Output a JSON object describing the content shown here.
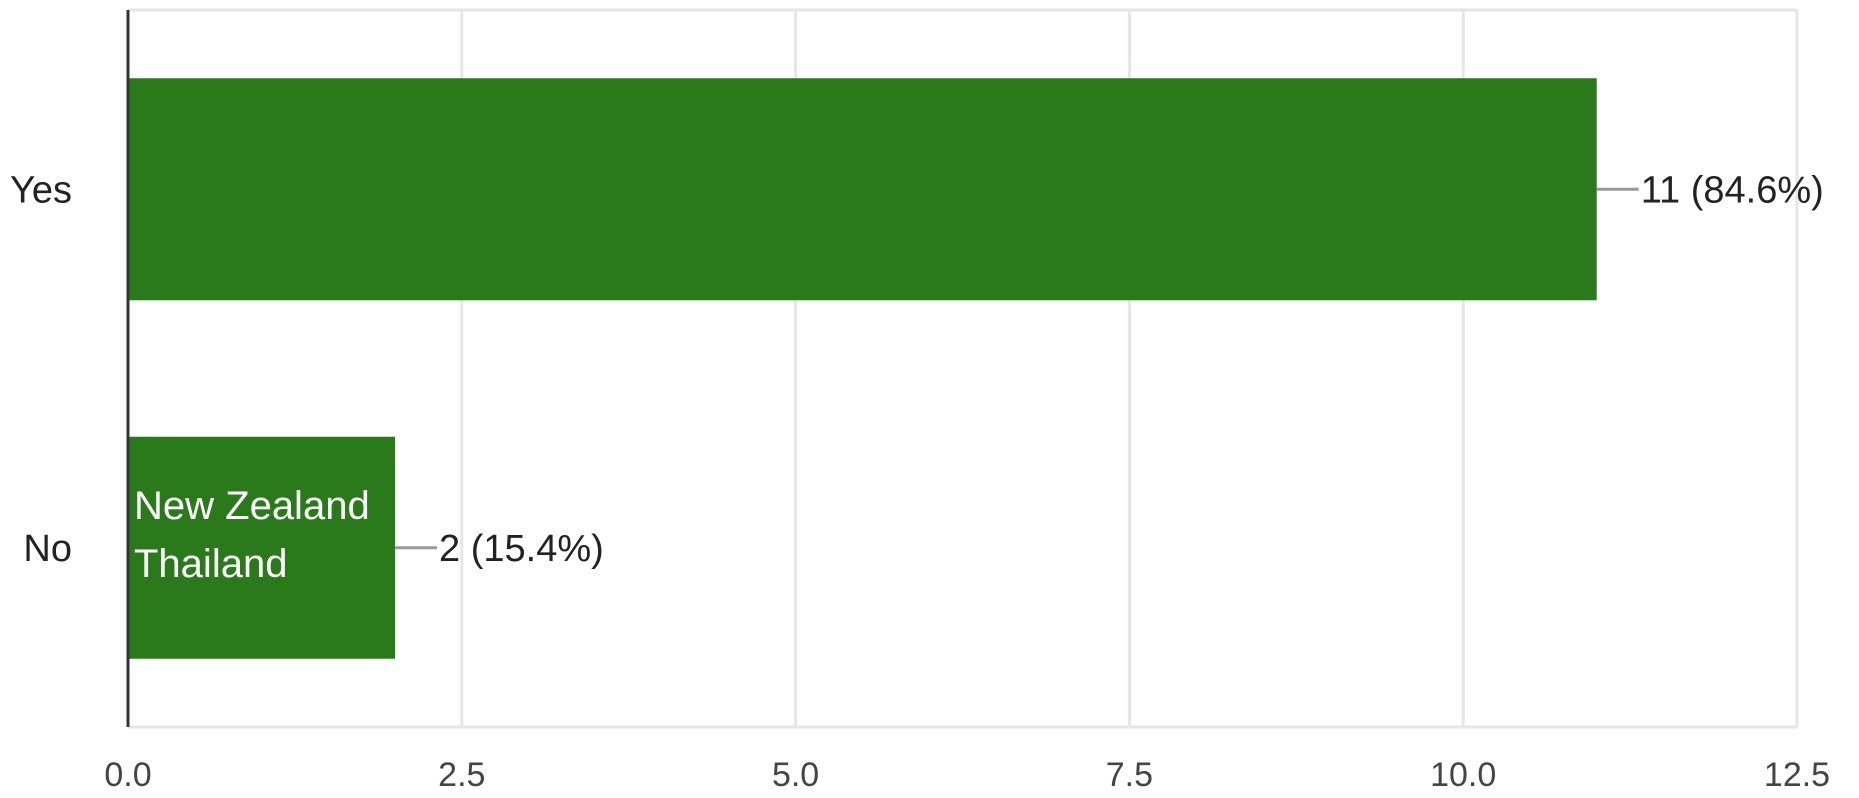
{
  "chart_data": {
    "type": "bar",
    "orientation": "horizontal",
    "categories": [
      "Yes",
      "No"
    ],
    "values": [
      11,
      2
    ],
    "value_labels": [
      "11 (84.6%)",
      "2 (15.4%)"
    ],
    "bar_annotations": [
      [],
      [
        "New Zealand",
        "Thailand"
      ]
    ],
    "xlim": [
      0,
      12.5
    ],
    "xticks": [
      0,
      2.5,
      5,
      7.5,
      10,
      12.5
    ],
    "xtick_labels": [
      "0.0",
      "2.5",
      "5.0",
      "7.5",
      "10.0",
      "12.5"
    ],
    "grid": "vertical",
    "legend": "none",
    "title": "",
    "xlabel": "",
    "ylabel": ""
  },
  "colors": {
    "bar": "#2a7a1c",
    "grid": "#e6e6e6",
    "axis": "#333333",
    "leader": "#999999"
  }
}
